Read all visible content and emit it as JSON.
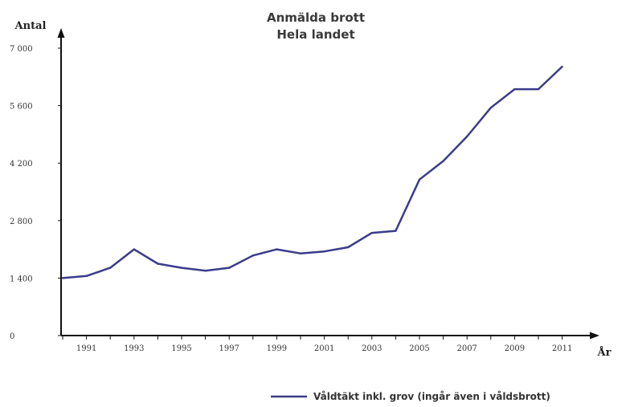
{
  "chart_data": {
    "type": "line",
    "title": "Anmälda brott",
    "subtitle": "Hela landet",
    "ylabel": "Antal",
    "xlabel": "År",
    "ylim": [
      0,
      7000
    ],
    "y_ticks": [
      0,
      1400,
      2800,
      4200,
      5600,
      7000
    ],
    "y_tick_labels": [
      "0",
      "1 400",
      "2 800",
      "4 200",
      "5 600",
      "7 000"
    ],
    "x_tick_labels": [
      "1991",
      "1993",
      "1995",
      "1997",
      "1999",
      "2001",
      "2003",
      "2005",
      "2007",
      "2009",
      "2011"
    ],
    "legend_position": "bottom-right",
    "series": [
      {
        "name": "Våldtäkt inkl. grov (ingår även i våldsbrott)",
        "color": "#3b3b8c",
        "x": [
          1990,
          1991,
          1992,
          1993,
          1994,
          1995,
          1996,
          1997,
          1998,
          1999,
          2000,
          2001,
          2002,
          2003,
          2004,
          2005,
          2006,
          2007,
          2008,
          2009,
          2010,
          2011
        ],
        "y": [
          1400,
          1450,
          1650,
          2100,
          1750,
          1650,
          1580,
          1650,
          1950,
          2100,
          2000,
          2050,
          2150,
          2500,
          2550,
          3800,
          4250,
          4850,
          5550,
          6000,
          6000,
          6550
        ]
      }
    ]
  }
}
